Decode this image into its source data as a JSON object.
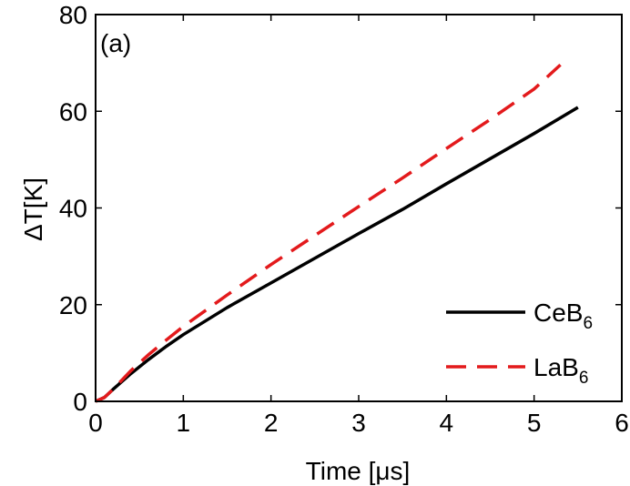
{
  "chart_data": {
    "type": "line",
    "panel_label": "(a)",
    "xlabel": {
      "main": "Time [",
      "symbol": "μ",
      "rest": "s]"
    },
    "ylabel": {
      "main": "ΔT[K]"
    },
    "xlim": [
      0,
      6
    ],
    "ylim": [
      0,
      80
    ],
    "xticks": [
      0,
      1,
      2,
      3,
      4,
      5,
      6
    ],
    "yticks": [
      0,
      20,
      40,
      60,
      80
    ],
    "grid": false,
    "legend_position": "bottom-right",
    "series": [
      {
        "name": "CeB",
        "subscript": "6",
        "style": "solid",
        "color": "#000000",
        "x": [
          0.0,
          0.1,
          0.2,
          0.4,
          0.6,
          0.8,
          1.0,
          1.5,
          2.0,
          2.5,
          3.0,
          3.5,
          4.0,
          4.5,
          5.0,
          5.5
        ],
        "y": [
          0.0,
          0.8,
          2.5,
          5.7,
          8.6,
          11.3,
          13.8,
          19.4,
          24.5,
          29.6,
          34.7,
          39.7,
          45.0,
          50.2,
          55.4,
          60.8
        ]
      },
      {
        "name": "LaB",
        "subscript": "6",
        "style": "dashed",
        "color": "#e31a1c",
        "x": [
          0.0,
          0.1,
          0.2,
          0.4,
          0.6,
          0.8,
          1.0,
          1.5,
          2.0,
          2.5,
          3.0,
          3.5,
          4.0,
          4.5,
          5.0,
          5.3
        ],
        "y": [
          0.0,
          0.8,
          2.5,
          6.3,
          9.6,
          12.6,
          15.5,
          22.0,
          28.3,
          34.3,
          40.3,
          46.2,
          52.3,
          58.3,
          64.6,
          69.6
        ]
      }
    ]
  }
}
